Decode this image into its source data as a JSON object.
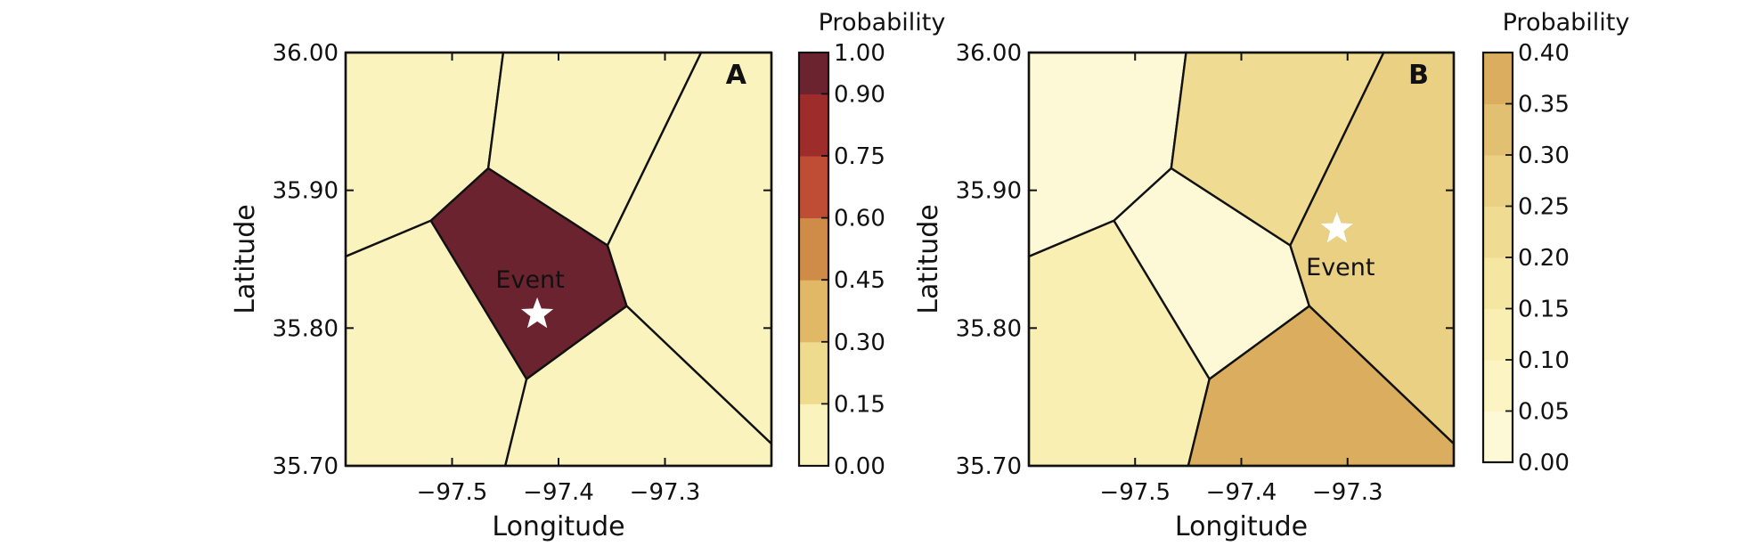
{
  "figure": {
    "panels": [
      {
        "label": "A",
        "xlabel": "Longitude",
        "ylabel": "Latitude",
        "xlim": [
          -97.6,
          -97.2
        ],
        "ylim": [
          35.7,
          36.0
        ],
        "x_ticks": [
          -97.5,
          -97.4,
          -97.3
        ],
        "x_tick_labels": [
          "−97.5",
          "−97.4",
          "−97.3"
        ],
        "y_ticks": [
          35.7,
          35.8,
          35.9,
          36.0
        ],
        "y_tick_labels": [
          "35.70",
          "35.80",
          "35.90",
          "36.00"
        ],
        "event": {
          "label": "Event",
          "lon": -97.42,
          "lat": 35.81
        },
        "colorbar": {
          "title": "Probability",
          "boundaries": [
            0.0,
            0.15,
            0.3,
            0.45,
            0.6,
            0.75,
            0.9,
            1.0
          ],
          "tick_labels": [
            "0.00",
            "0.15",
            "0.30",
            "0.45",
            "0.60",
            "0.75",
            "0.90",
            "1.00"
          ],
          "colors": [
            "#fbf3bd",
            "#eedb8e",
            "#e0b866",
            "#cf8c48",
            "#bf4d36",
            "#9e2c2b",
            "#6b2330"
          ]
        },
        "cells": [
          {
            "value": 0.99,
            "vertices": [
              [
                -97.52,
                35.878
              ],
              [
                -97.466,
                35.916
              ],
              [
                -97.354,
                35.86
              ],
              [
                -97.336,
                35.816
              ],
              [
                -97.43,
                35.763
              ]
            ]
          },
          {
            "value": 0.0,
            "vertices": [
              [
                -97.6,
                35.7
              ],
              [
                -97.6,
                35.852
              ],
              [
                -97.52,
                35.878
              ],
              [
                -97.43,
                35.763
              ],
              [
                -97.45,
                35.7
              ]
            ]
          },
          {
            "value": 0.0,
            "vertices": [
              [
                -97.6,
                35.852
              ],
              [
                -97.6,
                36.0
              ],
              [
                -97.452,
                36.0
              ],
              [
                -97.466,
                35.916
              ],
              [
                -97.52,
                35.878
              ]
            ]
          },
          {
            "value": 0.0,
            "vertices": [
              [
                -97.452,
                36.0
              ],
              [
                -97.266,
                36.0
              ],
              [
                -97.354,
                35.86
              ],
              [
                -97.466,
                35.916
              ]
            ]
          },
          {
            "value": 0.0,
            "vertices": [
              [
                -97.266,
                36.0
              ],
              [
                -97.2,
                36.0
              ],
              [
                -97.2,
                35.716
              ],
              [
                -97.336,
                35.816
              ],
              [
                -97.354,
                35.86
              ]
            ]
          },
          {
            "value": 0.0,
            "vertices": [
              [
                -97.45,
                35.7
              ],
              [
                -97.43,
                35.763
              ],
              [
                -97.336,
                35.816
              ],
              [
                -97.2,
                35.716
              ],
              [
                -97.2,
                35.7
              ]
            ]
          }
        ]
      },
      {
        "label": "B",
        "xlabel": "Longitude",
        "ylabel": "Latitude",
        "xlim": [
          -97.6,
          -97.2
        ],
        "ylim": [
          35.7,
          36.0
        ],
        "x_ticks": [
          -97.5,
          -97.4,
          -97.3
        ],
        "x_tick_labels": [
          "−97.5",
          "−97.4",
          "−97.3"
        ],
        "y_ticks": [
          35.7,
          35.8,
          35.9,
          36.0
        ],
        "y_tick_labels": [
          "35.70",
          "35.80",
          "35.90",
          "36.00"
        ],
        "event": {
          "label": "Event",
          "lon": -97.31,
          "lat": 35.872
        },
        "colorbar": {
          "title": "Probability",
          "boundaries": [
            0.0,
            0.05,
            0.1,
            0.15,
            0.2,
            0.25,
            0.3,
            0.35,
            0.4
          ],
          "tick_labels": [
            "0.00",
            "0.05",
            "0.10",
            "0.15",
            "0.20",
            "0.25",
            "0.30",
            "0.35",
            "0.40"
          ],
          "colors": [
            "#fdf9d6",
            "#fcf4c3",
            "#f9efb3",
            "#f5e6a2",
            "#efdc92",
            "#e9d083",
            "#e1c072",
            "#dbae5f"
          ]
        },
        "cells": [
          {
            "value": 0.04,
            "vertices": [
              [
                -97.52,
                35.878
              ],
              [
                -97.466,
                35.916
              ],
              [
                -97.354,
                35.86
              ],
              [
                -97.336,
                35.816
              ],
              [
                -97.43,
                35.763
              ]
            ]
          },
          {
            "value": 0.12,
            "vertices": [
              [
                -97.6,
                35.7
              ],
              [
                -97.6,
                35.852
              ],
              [
                -97.52,
                35.878
              ],
              [
                -97.43,
                35.763
              ],
              [
                -97.45,
                35.7
              ]
            ]
          },
          {
            "value": 0.03,
            "vertices": [
              [
                -97.6,
                35.852
              ],
              [
                -97.6,
                36.0
              ],
              [
                -97.452,
                36.0
              ],
              [
                -97.466,
                35.916
              ],
              [
                -97.52,
                35.878
              ]
            ]
          },
          {
            "value": 0.22,
            "vertices": [
              [
                -97.452,
                36.0
              ],
              [
                -97.266,
                36.0
              ],
              [
                -97.354,
                35.86
              ],
              [
                -97.466,
                35.916
              ]
            ]
          },
          {
            "value": 0.27,
            "vertices": [
              [
                -97.266,
                36.0
              ],
              [
                -97.2,
                36.0
              ],
              [
                -97.2,
                35.716
              ],
              [
                -97.336,
                35.816
              ],
              [
                -97.354,
                35.86
              ]
            ]
          },
          {
            "value": 0.37,
            "vertices": [
              [
                -97.45,
                35.7
              ],
              [
                -97.43,
                35.763
              ],
              [
                -97.336,
                35.816
              ],
              [
                -97.2,
                35.716
              ],
              [
                -97.2,
                35.7
              ]
            ]
          }
        ]
      }
    ]
  },
  "chart_data": [
    {
      "type": "heatmap",
      "panel_label": "A",
      "title": "",
      "xlabel": "Longitude",
      "ylabel": "Latitude",
      "xlim": [
        -97.6,
        -97.2
      ],
      "ylim": [
        35.7,
        36.0
      ],
      "colorbar_title": "Probability",
      "colorbar_range": [
        0.0,
        1.0
      ],
      "cell_values": [
        0.99,
        0.0,
        0.0,
        0.0,
        0.0,
        0.0
      ],
      "annotations": [
        {
          "text": "Event",
          "lon": -97.42,
          "lat": 35.81
        }
      ],
      "grid": false
    },
    {
      "type": "heatmap",
      "panel_label": "B",
      "title": "",
      "xlabel": "Longitude",
      "ylabel": "Latitude",
      "xlim": [
        -97.6,
        -97.2
      ],
      "ylim": [
        35.7,
        36.0
      ],
      "colorbar_title": "Probability",
      "colorbar_range": [
        0.0,
        0.4
      ],
      "cell_values": [
        0.04,
        0.12,
        0.03,
        0.22,
        0.27,
        0.37
      ],
      "annotations": [
        {
          "text": "Event",
          "lon": -97.31,
          "lat": 35.872
        }
      ],
      "grid": false
    }
  ]
}
